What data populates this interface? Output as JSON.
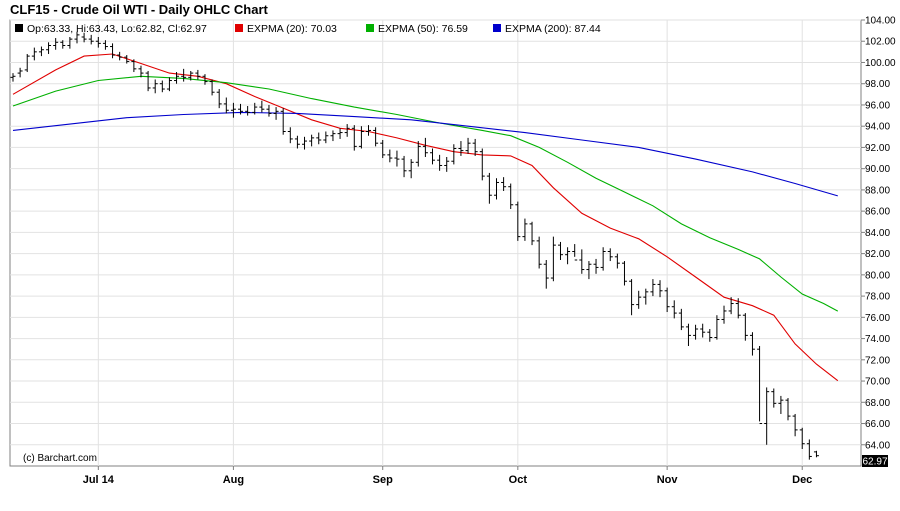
{
  "header": {
    "title": "CLF15 - Crude Oil WTI - Daily OHLC Chart"
  },
  "chart_data": {
    "type": "ohlc",
    "symbol": "CLF15",
    "title": "CLF15 - Crude Oil WTI - Daily OHLC Chart",
    "credit": "(c) Barchart.com",
    "last_value_label": "62.97",
    "ylim": [
      62,
      104
    ],
    "yticks": [
      "64.00",
      "66.00",
      "68.00",
      "70.00",
      "72.00",
      "74.00",
      "76.00",
      "78.00",
      "80.00",
      "82.00",
      "84.00",
      "86.00",
      "88.00",
      "90.00",
      "92.00",
      "94.00",
      "96.00",
      "98.00",
      "100.00",
      "102.00",
      "104.00"
    ],
    "y_axis_side": "right",
    "grid": true,
    "legend": [
      {
        "name": "Op:63.33, Hi:63.43, Lo:62.82, Cl:62.97",
        "color": "#000000"
      },
      {
        "name": "EXPMA (20): 70.03",
        "color": "#e00000"
      },
      {
        "name": "EXPMA (50): 76.59",
        "color": "#00b000"
      },
      {
        "name": "EXPMA (200): 87.44",
        "color": "#0000cc"
      }
    ],
    "x_ticks": [
      {
        "label": "Jul 14",
        "day": 12
      },
      {
        "label": "Aug",
        "day": 31
      },
      {
        "label": "Sep",
        "day": 52
      },
      {
        "label": "Oct",
        "day": 71
      },
      {
        "label": "Nov",
        "day": 92
      },
      {
        "label": "Dec",
        "day": 111
      }
    ],
    "x_range": [
      0,
      118
    ],
    "ohlc": [
      [
        98.6,
        99.0,
        98.2,
        98.7
      ],
      [
        99.0,
        99.5,
        98.6,
        99.2
      ],
      [
        99.3,
        100.8,
        99.1,
        100.6
      ],
      [
        100.6,
        101.4,
        100.2,
        101.0
      ],
      [
        101.0,
        101.5,
        100.6,
        101.2
      ],
      [
        101.2,
        101.9,
        100.8,
        101.6
      ],
      [
        101.6,
        102.3,
        101.2,
        101.9
      ],
      [
        101.9,
        102.1,
        101.3,
        101.6
      ],
      [
        101.6,
        102.4,
        101.3,
        102.2
      ],
      [
        102.2,
        102.9,
        101.8,
        102.6
      ],
      [
        102.4,
        102.8,
        101.9,
        102.2
      ],
      [
        102.2,
        102.6,
        101.7,
        102.0
      ],
      [
        102.0,
        102.4,
        101.4,
        101.8
      ],
      [
        101.8,
        102.1,
        101.2,
        101.5
      ],
      [
        101.5,
        101.8,
        100.4,
        100.7
      ],
      [
        100.7,
        101.0,
        100.2,
        100.5
      ],
      [
        100.5,
        100.7,
        99.9,
        100.1
      ],
      [
        100.1,
        100.3,
        99.1,
        99.4
      ],
      [
        99.4,
        99.7,
        98.6,
        99.0
      ],
      [
        99.0,
        99.2,
        97.3,
        97.6
      ],
      [
        97.6,
        98.4,
        97.1,
        98.0
      ],
      [
        98.0,
        98.3,
        97.2,
        97.5
      ],
      [
        97.5,
        98.6,
        97.3,
        98.3
      ],
      [
        98.3,
        99.1,
        98.0,
        98.7
      ],
      [
        98.7,
        99.4,
        98.2,
        98.6
      ],
      [
        98.6,
        99.2,
        98.3,
        99.0
      ],
      [
        99.0,
        99.3,
        98.4,
        98.7
      ],
      [
        98.7,
        98.9,
        97.9,
        98.2
      ],
      [
        98.2,
        98.4,
        96.9,
        97.2
      ],
      [
        97.2,
        97.5,
        95.7,
        96.1
      ],
      [
        96.1,
        96.7,
        95.2,
        95.5
      ],
      [
        95.5,
        96.2,
        94.8,
        95.6
      ],
      [
        95.6,
        96.1,
        95.1,
        95.4
      ],
      [
        95.4,
        95.9,
        95.0,
        95.3
      ],
      [
        95.3,
        96.2,
        95.1,
        95.8
      ],
      [
        95.8,
        96.4,
        95.3,
        95.6
      ],
      [
        95.6,
        96.0,
        94.9,
        95.2
      ],
      [
        95.2,
        95.8,
        94.6,
        95.4
      ],
      [
        95.4,
        95.7,
        93.2,
        93.5
      ],
      [
        93.5,
        93.9,
        92.4,
        92.8
      ],
      [
        92.8,
        93.1,
        91.9,
        92.3
      ],
      [
        92.3,
        93.0,
        91.8,
        92.6
      ],
      [
        92.6,
        93.2,
        92.1,
        92.9
      ],
      [
        92.9,
        93.4,
        92.3,
        92.7
      ],
      [
        92.7,
        93.5,
        92.4,
        93.1
      ],
      [
        93.1,
        93.6,
        92.6,
        93.3
      ],
      [
        93.3,
        93.8,
        92.8,
        93.4
      ],
      [
        93.4,
        94.2,
        93.0,
        93.8
      ],
      [
        93.8,
        94.1,
        91.7,
        92.1
      ],
      [
        92.1,
        94.0,
        91.9,
        93.5
      ],
      [
        93.5,
        94.1,
        93.1,
        93.6
      ],
      [
        93.6,
        93.9,
        92.1,
        92.4
      ],
      [
        92.4,
        92.7,
        91.0,
        91.3
      ],
      [
        91.3,
        91.8,
        90.6,
        91.0
      ],
      [
        91.0,
        91.7,
        90.2,
        90.9
      ],
      [
        90.9,
        91.2,
        89.2,
        89.8
      ],
      [
        89.8,
        90.9,
        89.1,
        90.6
      ],
      [
        90.6,
        92.6,
        90.2,
        92.1
      ],
      [
        92.1,
        92.9,
        91.1,
        91.5
      ],
      [
        91.5,
        91.9,
        90.4,
        90.8
      ],
      [
        90.8,
        91.3,
        89.8,
        90.3
      ],
      [
        90.3,
        91.1,
        89.7,
        90.7
      ],
      [
        90.7,
        92.3,
        90.4,
        91.9
      ],
      [
        91.9,
        92.6,
        91.2,
        91.7
      ],
      [
        91.7,
        92.9,
        91.4,
        92.4
      ],
      [
        92.4,
        92.8,
        91.2,
        91.6
      ],
      [
        91.6,
        91.9,
        88.9,
        89.3
      ],
      [
        89.3,
        89.6,
        86.7,
        87.5
      ],
      [
        87.5,
        89.1,
        87.1,
        88.7
      ],
      [
        88.7,
        89.2,
        87.9,
        88.3
      ],
      [
        88.3,
        88.6,
        86.2,
        86.6
      ],
      [
        86.6,
        86.9,
        83.2,
        83.6
      ],
      [
        83.6,
        85.3,
        83.2,
        84.8
      ],
      [
        84.8,
        85.0,
        82.8,
        83.2
      ],
      [
        83.2,
        83.6,
        80.6,
        81.0
      ],
      [
        81.0,
        81.4,
        78.7,
        79.7
      ],
      [
        79.7,
        83.6,
        79.4,
        82.8
      ],
      [
        82.8,
        83.1,
        81.4,
        81.9
      ],
      [
        81.9,
        82.6,
        81.0,
        82.2
      ],
      [
        82.2,
        82.9,
        81.7,
        81.4
      ],
      [
        81.4,
        82.4,
        80.1,
        80.5
      ],
      [
        80.5,
        81.3,
        79.6,
        81.0
      ],
      [
        81.0,
        81.5,
        80.1,
        80.7
      ],
      [
        80.7,
        82.6,
        80.4,
        82.2
      ],
      [
        82.2,
        82.5,
        81.3,
        81.7
      ],
      [
        81.7,
        82.0,
        80.6,
        81.1
      ],
      [
        81.1,
        81.3,
        79.0,
        79.4
      ],
      [
        79.4,
        79.6,
        76.2,
        77.2
      ],
      [
        77.2,
        78.5,
        76.8,
        77.9
      ],
      [
        77.9,
        78.7,
        77.2,
        78.4
      ],
      [
        78.4,
        79.6,
        78.0,
        79.1
      ],
      [
        79.1,
        79.5,
        77.9,
        78.5
      ],
      [
        78.5,
        78.8,
        76.5,
        77.0
      ],
      [
        77.0,
        77.6,
        75.9,
        76.4
      ],
      [
        76.4,
        76.8,
        74.8,
        75.1
      ],
      [
        75.1,
        75.4,
        73.3,
        74.3
      ],
      [
        74.3,
        75.3,
        73.9,
        74.9
      ],
      [
        74.9,
        75.4,
        74.1,
        74.6
      ],
      [
        74.6,
        74.9,
        73.7,
        74.1
      ],
      [
        74.1,
        76.2,
        73.9,
        75.8
      ],
      [
        75.8,
        77.1,
        75.4,
        76.6
      ],
      [
        76.6,
        77.9,
        76.3,
        77.3
      ],
      [
        77.3,
        77.8,
        75.9,
        76.2
      ],
      [
        76.2,
        76.4,
        73.8,
        74.3
      ],
      [
        74.3,
        74.6,
        72.4,
        73.0
      ],
      [
        73.0,
        73.3,
        66.2,
        66.0
      ],
      [
        66.0,
        69.4,
        64.0,
        69.0
      ],
      [
        69.0,
        69.3,
        67.5,
        67.9
      ],
      [
        67.9,
        68.6,
        66.9,
        68.2
      ],
      [
        68.2,
        68.4,
        66.3,
        66.7
      ],
      [
        66.7,
        66.9,
        64.8,
        65.4
      ],
      [
        65.4,
        65.6,
        63.6,
        64.1
      ],
      [
        64.1,
        64.5,
        62.6,
        62.9
      ],
      [
        63.33,
        63.43,
        62.82,
        62.97
      ]
    ],
    "series": [
      {
        "name": "EXPMA (20)",
        "color": "#e00000",
        "points": [
          [
            0,
            97.0
          ],
          [
            6,
            99.3
          ],
          [
            10,
            100.6
          ],
          [
            14,
            100.8
          ],
          [
            18,
            99.9
          ],
          [
            22,
            99.0
          ],
          [
            26,
            98.7
          ],
          [
            30,
            98.0
          ],
          [
            34,
            96.8
          ],
          [
            38,
            95.7
          ],
          [
            42,
            94.6
          ],
          [
            46,
            93.8
          ],
          [
            50,
            93.5
          ],
          [
            54,
            92.9
          ],
          [
            58,
            92.2
          ],
          [
            62,
            91.6
          ],
          [
            66,
            91.3
          ],
          [
            70,
            91.2
          ],
          [
            73,
            90.3
          ],
          [
            76,
            88.2
          ],
          [
            80,
            85.8
          ],
          [
            84,
            84.4
          ],
          [
            88,
            83.4
          ],
          [
            92,
            81.7
          ],
          [
            96,
            79.8
          ],
          [
            100,
            77.9
          ],
          [
            104,
            77.1
          ],
          [
            107,
            76.2
          ],
          [
            110,
            73.5
          ],
          [
            113,
            71.6
          ],
          [
            116,
            70.03
          ]
        ]
      },
      {
        "name": "EXPMA (50)",
        "color": "#00b000",
        "points": [
          [
            0,
            95.9
          ],
          [
            6,
            97.3
          ],
          [
            12,
            98.3
          ],
          [
            18,
            98.7
          ],
          [
            24,
            98.5
          ],
          [
            30,
            98.1
          ],
          [
            36,
            97.5
          ],
          [
            42,
            96.6
          ],
          [
            48,
            95.8
          ],
          [
            54,
            95.1
          ],
          [
            60,
            94.3
          ],
          [
            66,
            93.6
          ],
          [
            70,
            93.1
          ],
          [
            74,
            92.0
          ],
          [
            78,
            90.6
          ],
          [
            82,
            89.1
          ],
          [
            86,
            87.8
          ],
          [
            90,
            86.5
          ],
          [
            94,
            84.8
          ],
          [
            98,
            83.5
          ],
          [
            102,
            82.4
          ],
          [
            105,
            81.5
          ],
          [
            108,
            79.8
          ],
          [
            111,
            78.2
          ],
          [
            114,
            77.3
          ],
          [
            116,
            76.59
          ]
        ]
      },
      {
        "name": "EXPMA (200)",
        "color": "#0000cc",
        "points": [
          [
            0,
            93.6
          ],
          [
            8,
            94.2
          ],
          [
            16,
            94.8
          ],
          [
            24,
            95.1
          ],
          [
            32,
            95.3
          ],
          [
            40,
            95.2
          ],
          [
            48,
            94.9
          ],
          [
            56,
            94.6
          ],
          [
            64,
            94.0
          ],
          [
            72,
            93.4
          ],
          [
            80,
            92.7
          ],
          [
            88,
            92.0
          ],
          [
            96,
            90.9
          ],
          [
            104,
            89.7
          ],
          [
            110,
            88.6
          ],
          [
            116,
            87.44
          ]
        ]
      }
    ]
  }
}
